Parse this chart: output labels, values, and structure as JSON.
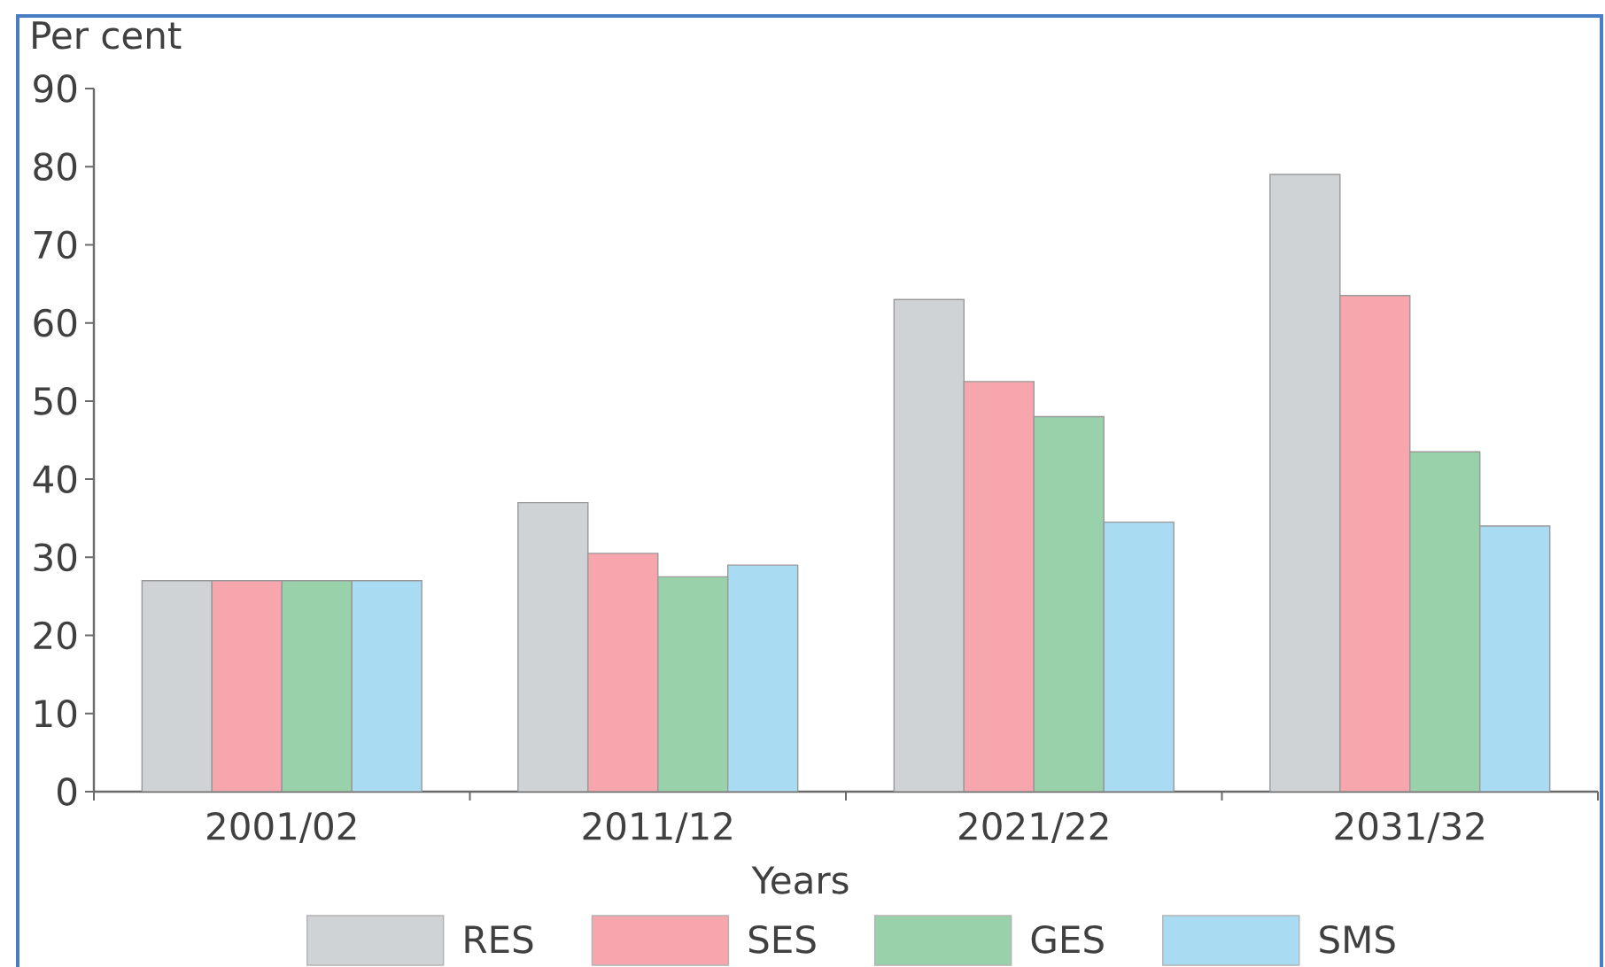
{
  "chart_data": {
    "type": "bar",
    "ylabel": "Per cent",
    "xlabel": "Years",
    "categories": [
      "2001/02",
      "2011/12",
      "2021/22",
      "2031/32"
    ],
    "series": [
      {
        "name": "RES",
        "color": "#d0d3d6",
        "values": [
          27,
          37,
          63,
          79
        ]
      },
      {
        "name": "SES",
        "color": "#f7a6ad",
        "values": [
          27,
          30.5,
          52.5,
          63.5
        ]
      },
      {
        "name": "GES",
        "color": "#98d1aa",
        "values": [
          27,
          27.5,
          48,
          43.5
        ]
      },
      {
        "name": "SMS",
        "color": "#a9dcf3",
        "values": [
          27,
          29,
          34.5,
          34
        ]
      }
    ],
    "ylim": [
      0,
      90
    ],
    "yticks": [
      0,
      10,
      20,
      30,
      40,
      50,
      60,
      70,
      80,
      90
    ],
    "legend": "bottom"
  }
}
